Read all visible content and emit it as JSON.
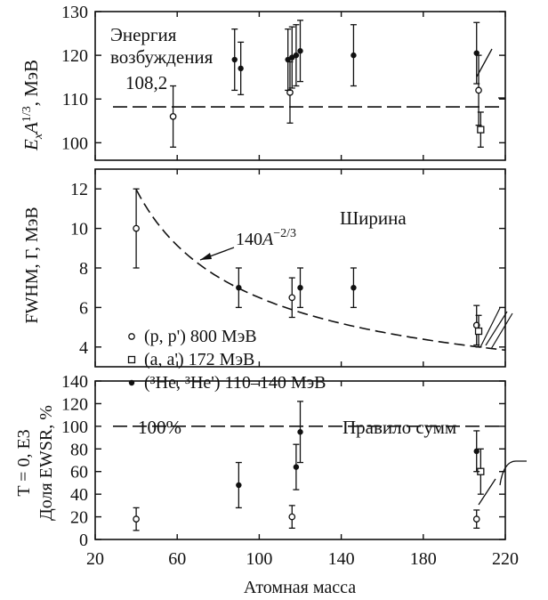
{
  "chart_data": [
    {
      "type": "scatter",
      "ylabel": "E_xA^{1/3}, МэВ",
      "ylim": [
        96,
        130
      ],
      "yticks": [
        100,
        110,
        120,
        130
      ],
      "xlim": [
        20,
        220
      ],
      "annotations": {
        "text_line1": "Энергия",
        "text_line2": "возбуждения",
        "ref_label": "108,2"
      },
      "reference_line": {
        "y": 108.2,
        "style": "dashed"
      },
      "series": [
        {
          "name": "(p, p') 800 МэВ",
          "marker": "open-circle",
          "points": [
            {
              "x": 58,
              "y": 106,
              "err": 7
            },
            {
              "x": 115,
              "y": 111.5,
              "err": 7
            },
            {
              "x": 207,
              "y": 112,
              "err": 8
            }
          ]
        },
        {
          "name": "(a, a') 172 МэВ",
          "marker": "open-square",
          "points": [
            {
              "x": 208,
              "y": 103,
              "err": 4
            }
          ]
        },
        {
          "name": "(3He, 3He') 110–140 МэВ",
          "marker": "filled-circle",
          "points": [
            {
              "x": 88,
              "y": 119,
              "err": 7
            },
            {
              "x": 91,
              "y": 117,
              "err": 6
            },
            {
              "x": 114,
              "y": 119,
              "err": 7
            },
            {
              "x": 116,
              "y": 119.5,
              "err": 7
            },
            {
              "x": 118,
              "y": 120,
              "err": 7
            },
            {
              "x": 120,
              "y": 121,
              "err": 7
            },
            {
              "x": 146,
              "y": 120,
              "err": 7
            },
            {
              "x": 206,
              "y": 120.5,
              "err": 7
            }
          ]
        }
      ]
    },
    {
      "type": "scatter",
      "ylabel": "FWHM, Г, МэВ",
      "ylim": [
        3,
        13
      ],
      "yticks": [
        4,
        6,
        8,
        10,
        12
      ],
      "xlim": [
        20,
        220
      ],
      "annotations": {
        "title": "Ширина",
        "curve_label": "140A^{-2/3}"
      },
      "fit_curve": {
        "formula": "140*A^(-2/3)",
        "x_range": [
          40,
          220
        ],
        "style": "dashed"
      },
      "series": [
        {
          "name": "(p, p') 800 МэВ",
          "marker": "open-circle",
          "points": [
            {
              "x": 40,
              "y": 10,
              "err": 2
            },
            {
              "x": 116,
              "y": 6.5,
              "err": 1
            },
            {
              "x": 206,
              "y": 5.1,
              "err": 1
            }
          ]
        },
        {
          "name": "(a, a') 172 МэВ",
          "marker": "open-square",
          "points": [
            {
              "x": 207,
              "y": 4.8,
              "err": 0.8
            }
          ]
        },
        {
          "name": "(3He, 3He') 110–140 МэВ",
          "marker": "filled-circle",
          "points": [
            {
              "x": 90,
              "y": 7,
              "err": 1
            },
            {
              "x": 120,
              "y": 7,
              "err": 1
            },
            {
              "x": 146,
              "y": 7,
              "err": 1
            }
          ]
        }
      ]
    },
    {
      "type": "scatter",
      "ylabel_line1": "T = 0, E3",
      "ylabel_line2": "Доля EWSR, %",
      "ylim": [
        0,
        140
      ],
      "yticks": [
        0,
        20,
        40,
        60,
        80,
        100,
        120,
        140
      ],
      "xlim": [
        20,
        220
      ],
      "xticks": [
        20,
        60,
        100,
        140,
        180,
        220
      ],
      "xlabel": "Атомная масса",
      "annotations": {
        "ref_label": "100%",
        "rule_label": "Правило сумм"
      },
      "reference_line": {
        "y": 100,
        "style": "dashed"
      },
      "series": [
        {
          "name": "(p, p') 800 МэВ",
          "marker": "open-circle",
          "points": [
            {
              "x": 40,
              "y": 18,
              "err": 10
            },
            {
              "x": 116,
              "y": 20,
              "err": 10
            },
            {
              "x": 206,
              "y": 18,
              "err": 8
            }
          ]
        },
        {
          "name": "(a, a') 172 МэВ",
          "marker": "open-square",
          "points": [
            {
              "x": 208,
              "y": 60,
              "err": 20
            }
          ]
        },
        {
          "name": "(3He, 3He') 110–140 МэВ",
          "marker": "filled-circle",
          "points": [
            {
              "x": 90,
              "y": 48,
              "err": 20
            },
            {
              "x": 118,
              "y": 64,
              "err": 20
            },
            {
              "x": 120,
              "y": 95,
              "err": 27
            },
            {
              "x": 206,
              "y": 78,
              "err": 18
            }
          ]
        }
      ]
    }
  ],
  "legend": [
    {
      "marker": "open-circle",
      "label": "(p, p') 800 МэВ"
    },
    {
      "marker": "open-square",
      "label": "(a, a') 172 МэВ"
    },
    {
      "marker": "filled-circle",
      "label": "(³He, ³He') 110–140 МэВ"
    }
  ]
}
